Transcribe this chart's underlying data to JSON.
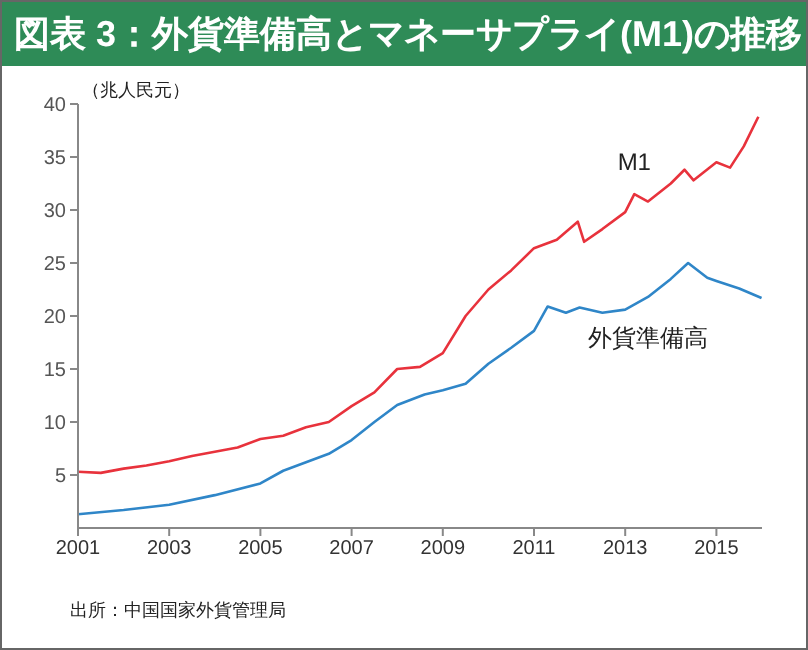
{
  "chart_data": {
    "type": "line",
    "title": "図表 3：外貨準備高とマネーサプライ(M1)の推移",
    "ylabel": "（兆人民元）",
    "annotations": [
      "出所：中国国家外貨管理局"
    ],
    "xlim": [
      2001,
      2016
    ],
    "xticks": [
      2001,
      2003,
      2005,
      2007,
      2009,
      2011,
      2013,
      2015
    ],
    "ylim": [
      0,
      40
    ],
    "yticks": [
      5,
      10,
      15,
      20,
      25,
      30,
      35,
      40
    ],
    "grid": false,
    "legend": false,
    "marker": "none",
    "line_style": "solid",
    "series": [
      {
        "name": "M1",
        "color": "#e8323c",
        "x": [
          2001.0,
          2001.5,
          2002.0,
          2002.5,
          2003.0,
          2003.5,
          2004.0,
          2004.5,
          2005.0,
          2005.5,
          2006.0,
          2006.5,
          2007.0,
          2007.5,
          2008.0,
          2008.5,
          2009.0,
          2009.5,
          2010.0,
          2010.5,
          2011.0,
          2011.5,
          2011.96,
          2012.1,
          2012.5,
          2013.0,
          2013.2,
          2013.5,
          2014.0,
          2014.3,
          2014.5,
          2015.0,
          2015.3,
          2015.6,
          2015.92
        ],
        "values": [
          5.3,
          5.2,
          5.6,
          5.9,
          6.3,
          6.8,
          7.2,
          7.6,
          8.4,
          8.7,
          9.5,
          10.0,
          11.5,
          12.8,
          15.0,
          15.2,
          16.5,
          20.0,
          22.5,
          24.3,
          26.4,
          27.2,
          28.9,
          27.0,
          28.2,
          29.8,
          31.5,
          30.8,
          32.5,
          33.8,
          32.8,
          34.5,
          34.0,
          36.0,
          38.8
        ]
      },
      {
        "name": "外貨準備高",
        "color": "#2f86c8",
        "x": [
          2001.0,
          2002.0,
          2003.0,
          2004.0,
          2005.0,
          2005.5,
          2006.0,
          2006.5,
          2007.0,
          2007.5,
          2008.0,
          2008.6,
          2009.0,
          2009.5,
          2010.0,
          2010.5,
          2011.0,
          2011.3,
          2011.7,
          2012.0,
          2012.5,
          2013.0,
          2013.5,
          2014.0,
          2014.38,
          2014.8,
          2015.0,
          2015.5,
          2015.99
        ],
        "values": [
          1.3,
          1.7,
          2.2,
          3.1,
          4.2,
          5.4,
          6.2,
          7.0,
          8.3,
          10.0,
          11.6,
          12.6,
          13.0,
          13.6,
          15.5,
          17.0,
          18.6,
          20.9,
          20.3,
          20.8,
          20.3,
          20.6,
          21.8,
          23.5,
          25.0,
          23.6,
          23.3,
          22.6,
          21.7
        ]
      }
    ]
  }
}
